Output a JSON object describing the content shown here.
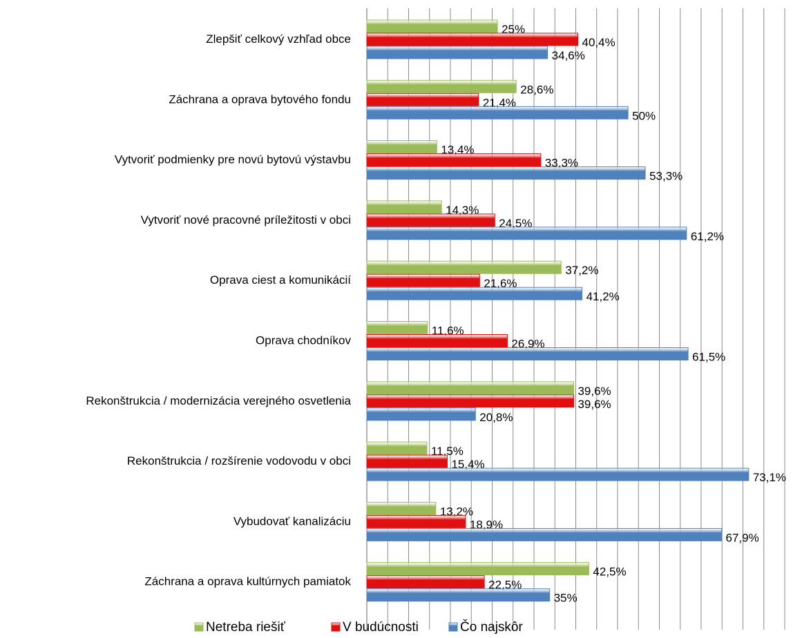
{
  "chart_data": {
    "type": "hbar",
    "categories": [
      "Zlepšiť celkový vzhľad obce",
      "Záchrana a oprava bytového fondu",
      "Vytvoriť podmienky pre novú bytovú výstavbu",
      "Vytvoriť nové pracovné príležitosti v obci",
      "Oprava ciest a komunikácií",
      "Oprava chodníkov",
      "Rekonštrukcia / modernizácia verejného osvetlenia",
      "Rekonštrukcia / rozšírenie vodovodu v obci",
      "Vybudovať kanalizáciu",
      "Záchrana a oprava kultúrnych pamiatok"
    ],
    "series": [
      {
        "name": "Netreba riešiť",
        "color": "#9bbb59",
        "values": [
          25,
          28.6,
          13.4,
          14.3,
          37.2,
          11.6,
          39.6,
          11.5,
          13.2,
          42.5
        ],
        "value_labels": [
          "25%",
          "28,6%",
          "13,4%",
          "14,3%",
          "37,2%",
          "11,6%",
          "39,6%",
          "11,5%",
          "13,2%",
          "42,5%"
        ]
      },
      {
        "name": "V budúcnosti",
        "color": "#e01010",
        "values": [
          40.4,
          21.4,
          33.3,
          24.5,
          21.6,
          26.9,
          39.6,
          15.4,
          18.9,
          22.5
        ],
        "value_labels": [
          "40,4%",
          "21,4%",
          "33,3%",
          "24,5%",
          "21,6%",
          "26,9%",
          "39,6%",
          "15,4%",
          "18,9%",
          "22,5%"
        ]
      },
      {
        "name": "Čo najskôr",
        "color": "#4f81bd",
        "values": [
          34.6,
          50,
          53.3,
          61.2,
          41.2,
          61.5,
          20.8,
          73.1,
          67.9,
          35
        ],
        "value_labels": [
          "34,6%",
          "50%",
          "53,3%",
          "61,2%",
          "41,2%",
          "61,5%",
          "20,8%",
          "73,1%",
          "67,9%",
          "35%"
        ]
      }
    ],
    "xlim": [
      0,
      80
    ],
    "xticks": [
      0,
      4,
      8,
      12,
      16,
      20,
      24,
      28,
      32,
      36,
      40,
      44,
      48,
      52,
      56,
      60,
      64,
      68,
      72,
      76,
      80
    ],
    "grid": true,
    "legend": "bottom"
  }
}
